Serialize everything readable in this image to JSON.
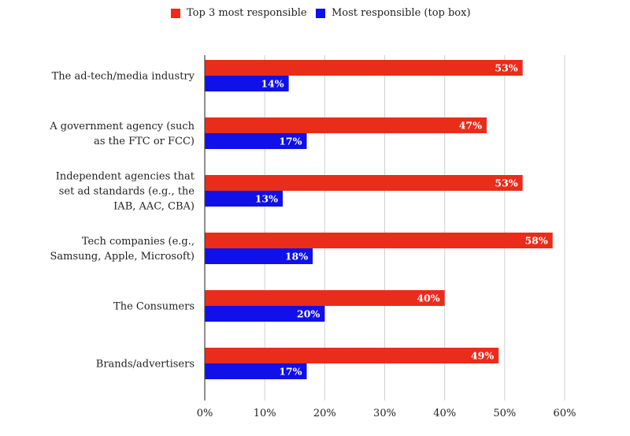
{
  "chart_data": {
    "type": "bar",
    "orientation": "horizontal",
    "categories": [
      [
        "The ad-tech/media industry"
      ],
      [
        "A government agency (such",
        "as the FTC or FCC)"
      ],
      [
        "Independent agencies that",
        "set ad standards (e.g., the",
        "IAB, AAC, CBA)"
      ],
      [
        "Tech companies (e.g.,",
        "Samsung, Apple, Microsoft)"
      ],
      [
        "The Consumers"
      ],
      [
        "Brands/advertisers"
      ]
    ],
    "series": [
      {
        "name": "Top 3 most responsible",
        "color": "#ea2c1a",
        "values": [
          53,
          47,
          53,
          58,
          40,
          49
        ]
      },
      {
        "name": "Most responsible (top box)",
        "color": "#1010e8",
        "values": [
          14,
          17,
          13,
          18,
          20,
          17
        ]
      }
    ],
    "xlim": [
      0,
      60
    ],
    "xticks": [
      0,
      10,
      20,
      30,
      40,
      50,
      60
    ],
    "tick_format": "%",
    "value_suffix": "%",
    "legend_position": "top",
    "grid": true
  }
}
